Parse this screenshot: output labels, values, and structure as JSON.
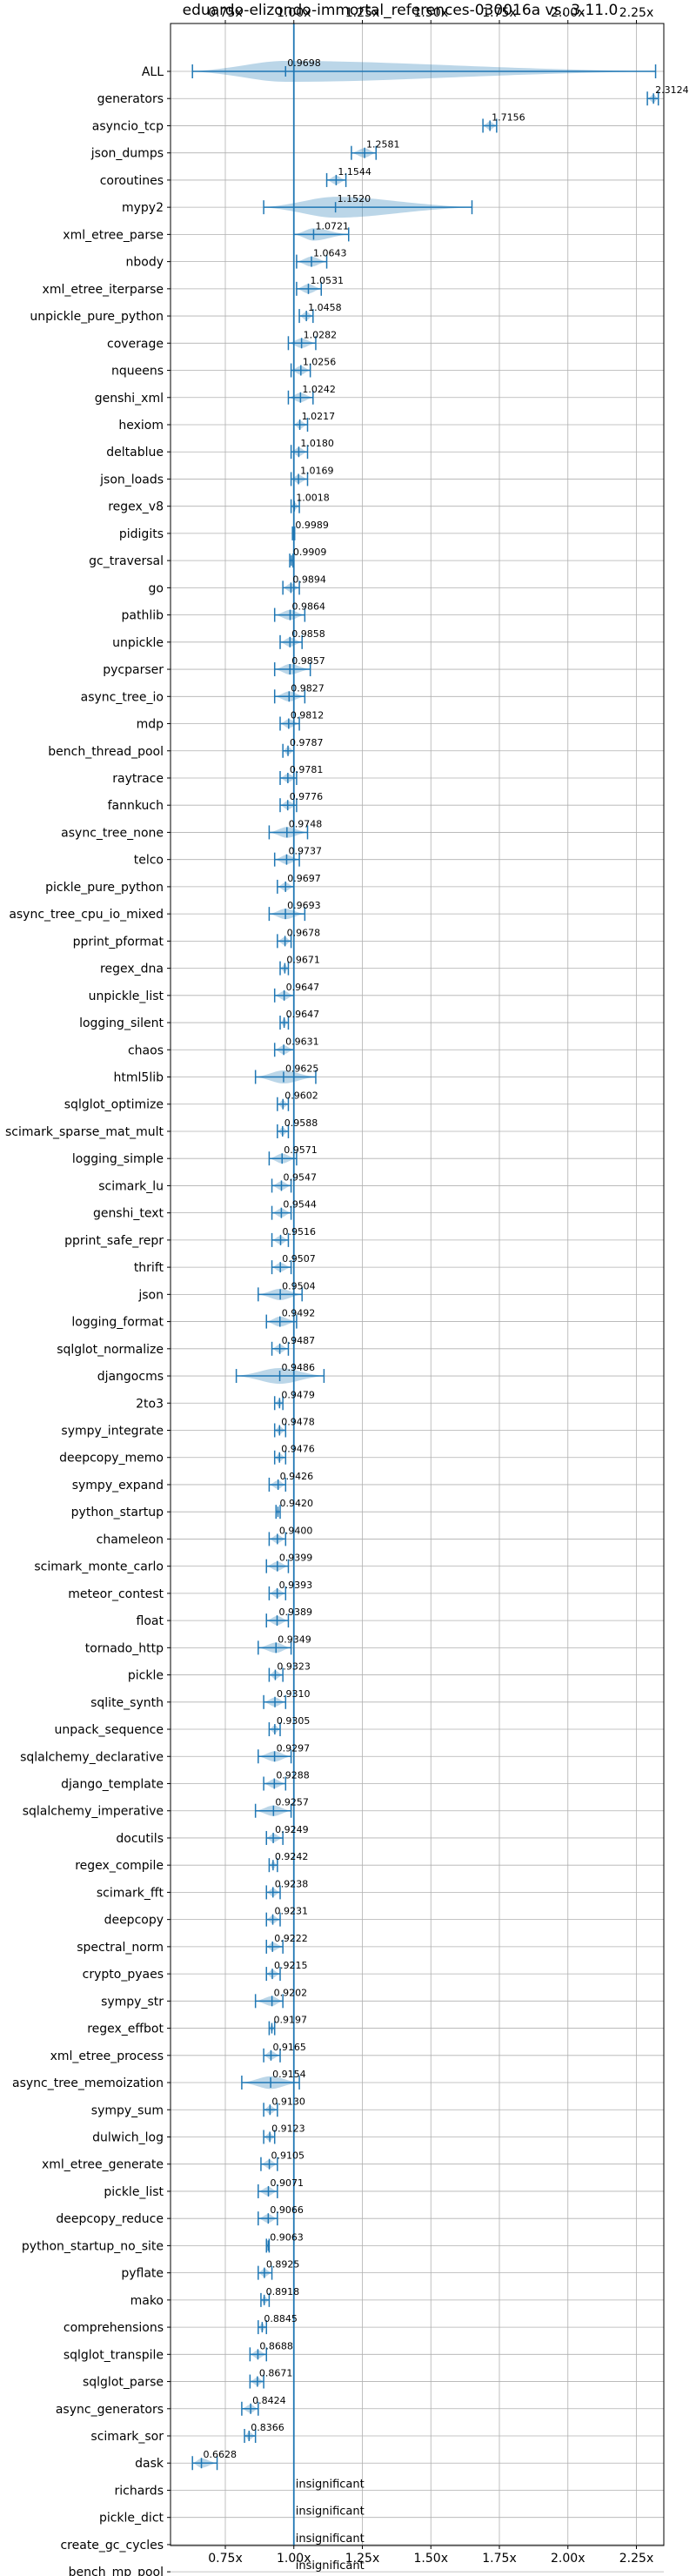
{
  "chart_data": {
    "type": "violin",
    "title": "eduardo-elizondo-immortal_references-030016a vs. 3.11.0",
    "xlim": [
      0.55,
      2.35
    ],
    "x_ticks": [
      0.75,
      1.0,
      1.25,
      1.5,
      1.75,
      2.0,
      2.25
    ],
    "x_tick_labels": [
      "0.75x",
      "1.00x",
      "1.25x",
      "1.50x",
      "1.75x",
      "2.00x",
      "2.25x"
    ],
    "reference_x": 1.0,
    "grid": true,
    "color": "#1f77b4",
    "insignificant_label": "insignificant",
    "benchmarks": [
      {
        "name": "ALL",
        "value": 0.9698,
        "label": "0.9698",
        "min": 0.63,
        "max": 2.32
      },
      {
        "name": "generators",
        "value": 2.3124,
        "label": "2.3124",
        "min": 2.29,
        "max": 2.33
      },
      {
        "name": "asyncio_tcp",
        "value": 1.7156,
        "label": "1.7156",
        "min": 1.69,
        "max": 1.74
      },
      {
        "name": "json_dumps",
        "value": 1.2581,
        "label": "1.2581",
        "min": 1.21,
        "max": 1.3
      },
      {
        "name": "coroutines",
        "value": 1.1544,
        "label": "1.1544",
        "min": 1.12,
        "max": 1.19
      },
      {
        "name": "mypy2",
        "value": 1.152,
        "label": "1.1520",
        "min": 0.89,
        "max": 1.65
      },
      {
        "name": "xml_etree_parse",
        "value": 1.0721,
        "label": "1.0721",
        "min": 1.0,
        "max": 1.2
      },
      {
        "name": "nbody",
        "value": 1.0643,
        "label": "1.0643",
        "min": 1.01,
        "max": 1.12
      },
      {
        "name": "xml_etree_iterparse",
        "value": 1.0531,
        "label": "1.0531",
        "min": 1.01,
        "max": 1.1
      },
      {
        "name": "unpickle_pure_python",
        "value": 1.0458,
        "label": "1.0458",
        "min": 1.02,
        "max": 1.07
      },
      {
        "name": "coverage",
        "value": 1.0282,
        "label": "1.0282",
        "min": 0.98,
        "max": 1.08
      },
      {
        "name": "nqueens",
        "value": 1.0256,
        "label": "1.0256",
        "min": 0.99,
        "max": 1.06
      },
      {
        "name": "genshi_xml",
        "value": 1.0242,
        "label": "1.0242",
        "min": 0.98,
        "max": 1.07
      },
      {
        "name": "hexiom",
        "value": 1.0217,
        "label": "1.0217",
        "min": 1.0,
        "max": 1.05
      },
      {
        "name": "deltablue",
        "value": 1.018,
        "label": "1.0180",
        "min": 0.99,
        "max": 1.05
      },
      {
        "name": "json_loads",
        "value": 1.0169,
        "label": "1.0169",
        "min": 0.99,
        "max": 1.05
      },
      {
        "name": "regex_v8",
        "value": 1.0018,
        "label": "1.0018",
        "min": 0.99,
        "max": 1.02
      },
      {
        "name": "pidigits",
        "value": 0.9989,
        "label": "0.9989",
        "min": 0.995,
        "max": 1.003
      },
      {
        "name": "gc_traversal",
        "value": 0.9909,
        "label": "0.9909",
        "min": 0.985,
        "max": 0.997
      },
      {
        "name": "go",
        "value": 0.9894,
        "label": "0.9894",
        "min": 0.96,
        "max": 1.02
      },
      {
        "name": "pathlib",
        "value": 0.9864,
        "label": "0.9864",
        "min": 0.93,
        "max": 1.04
      },
      {
        "name": "unpickle",
        "value": 0.9858,
        "label": "0.9858",
        "min": 0.95,
        "max": 1.03
      },
      {
        "name": "pycparser",
        "value": 0.9857,
        "label": "0.9857",
        "min": 0.93,
        "max": 1.06
      },
      {
        "name": "async_tree_io",
        "value": 0.9827,
        "label": "0.9827",
        "min": 0.93,
        "max": 1.04
      },
      {
        "name": "mdp",
        "value": 0.9812,
        "label": "0.9812",
        "min": 0.95,
        "max": 1.02
      },
      {
        "name": "bench_thread_pool",
        "value": 0.9787,
        "label": "0.9787",
        "min": 0.96,
        "max": 1.0
      },
      {
        "name": "raytrace",
        "value": 0.9781,
        "label": "0.9781",
        "min": 0.95,
        "max": 1.01
      },
      {
        "name": "fannkuch",
        "value": 0.9776,
        "label": "0.9776",
        "min": 0.95,
        "max": 1.01
      },
      {
        "name": "async_tree_none",
        "value": 0.9748,
        "label": "0.9748",
        "min": 0.91,
        "max": 1.05
      },
      {
        "name": "telco",
        "value": 0.9737,
        "label": "0.9737",
        "min": 0.93,
        "max": 1.02
      },
      {
        "name": "pickle_pure_python",
        "value": 0.9697,
        "label": "0.9697",
        "min": 0.94,
        "max": 1.0
      },
      {
        "name": "async_tree_cpu_io_mixed",
        "value": 0.9693,
        "label": "0.9693",
        "min": 0.91,
        "max": 1.04
      },
      {
        "name": "pprint_pformat",
        "value": 0.9678,
        "label": "0.9678",
        "min": 0.94,
        "max": 0.99
      },
      {
        "name": "regex_dna",
        "value": 0.9671,
        "label": "0.9671",
        "min": 0.95,
        "max": 0.98
      },
      {
        "name": "unpickle_list",
        "value": 0.9647,
        "label": "0.9647",
        "min": 0.93,
        "max": 1.0
      },
      {
        "name": "logging_silent",
        "value": 0.9647,
        "label": "0.9647",
        "min": 0.95,
        "max": 0.98
      },
      {
        "name": "chaos",
        "value": 0.9631,
        "label": "0.9631",
        "min": 0.93,
        "max": 1.0
      },
      {
        "name": "html5lib",
        "value": 0.9625,
        "label": "0.9625",
        "min": 0.86,
        "max": 1.08
      },
      {
        "name": "sqlglot_optimize",
        "value": 0.9602,
        "label": "0.9602",
        "min": 0.94,
        "max": 0.98
      },
      {
        "name": "scimark_sparse_mat_mult",
        "value": 0.9588,
        "label": "0.9588",
        "min": 0.94,
        "max": 0.98
      },
      {
        "name": "logging_simple",
        "value": 0.9571,
        "label": "0.9571",
        "min": 0.91,
        "max": 1.01
      },
      {
        "name": "scimark_lu",
        "value": 0.9547,
        "label": "0.9547",
        "min": 0.92,
        "max": 0.99
      },
      {
        "name": "genshi_text",
        "value": 0.9544,
        "label": "0.9544",
        "min": 0.92,
        "max": 0.99
      },
      {
        "name": "pprint_safe_repr",
        "value": 0.9516,
        "label": "0.9516",
        "min": 0.92,
        "max": 0.98
      },
      {
        "name": "thrift",
        "value": 0.9507,
        "label": "0.9507",
        "min": 0.92,
        "max": 0.99
      },
      {
        "name": "json",
        "value": 0.9504,
        "label": "0.9504",
        "min": 0.87,
        "max": 1.03
      },
      {
        "name": "logging_format",
        "value": 0.9492,
        "label": "0.9492",
        "min": 0.9,
        "max": 1.01
      },
      {
        "name": "sqlglot_normalize",
        "value": 0.9487,
        "label": "0.9487",
        "min": 0.92,
        "max": 0.98
      },
      {
        "name": "djangocms",
        "value": 0.9486,
        "label": "0.9486",
        "min": 0.79,
        "max": 1.11
      },
      {
        "name": "2to3",
        "value": 0.9479,
        "label": "0.9479",
        "min": 0.93,
        "max": 0.96
      },
      {
        "name": "sympy_integrate",
        "value": 0.9478,
        "label": "0.9478",
        "min": 0.93,
        "max": 0.97
      },
      {
        "name": "deepcopy_memo",
        "value": 0.9476,
        "label": "0.9476",
        "min": 0.93,
        "max": 0.97
      },
      {
        "name": "sympy_expand",
        "value": 0.9426,
        "label": "0.9426",
        "min": 0.91,
        "max": 0.97
      },
      {
        "name": "python_startup",
        "value": 0.942,
        "label": "0.9420",
        "min": 0.935,
        "max": 0.95
      },
      {
        "name": "chameleon",
        "value": 0.94,
        "label": "0.9400",
        "min": 0.91,
        "max": 0.97
      },
      {
        "name": "scimark_monte_carlo",
        "value": 0.9399,
        "label": "0.9399",
        "min": 0.9,
        "max": 0.98
      },
      {
        "name": "meteor_contest",
        "value": 0.9393,
        "label": "0.9393",
        "min": 0.91,
        "max": 0.97
      },
      {
        "name": "float",
        "value": 0.9389,
        "label": "0.9389",
        "min": 0.9,
        "max": 0.98
      },
      {
        "name": "tornado_http",
        "value": 0.9349,
        "label": "0.9349",
        "min": 0.87,
        "max": 0.99
      },
      {
        "name": "pickle",
        "value": 0.9323,
        "label": "0.9323",
        "min": 0.91,
        "max": 0.96
      },
      {
        "name": "sqlite_synth",
        "value": 0.931,
        "label": "0.9310",
        "min": 0.89,
        "max": 0.97
      },
      {
        "name": "unpack_sequence",
        "value": 0.9305,
        "label": "0.9305",
        "min": 0.91,
        "max": 0.95
      },
      {
        "name": "sqlalchemy_declarative",
        "value": 0.9297,
        "label": "0.9297",
        "min": 0.87,
        "max": 0.99
      },
      {
        "name": "django_template",
        "value": 0.9288,
        "label": "0.9288",
        "min": 0.89,
        "max": 0.97
      },
      {
        "name": "sqlalchemy_imperative",
        "value": 0.9257,
        "label": "0.9257",
        "min": 0.86,
        "max": 0.99
      },
      {
        "name": "docutils",
        "value": 0.9249,
        "label": "0.9249",
        "min": 0.9,
        "max": 0.96
      },
      {
        "name": "regex_compile",
        "value": 0.9242,
        "label": "0.9242",
        "min": 0.91,
        "max": 0.94
      },
      {
        "name": "scimark_fft",
        "value": 0.9238,
        "label": "0.9238",
        "min": 0.9,
        "max": 0.95
      },
      {
        "name": "deepcopy",
        "value": 0.9231,
        "label": "0.9231",
        "min": 0.9,
        "max": 0.95
      },
      {
        "name": "spectral_norm",
        "value": 0.9222,
        "label": "0.9222",
        "min": 0.9,
        "max": 0.96
      },
      {
        "name": "crypto_pyaes",
        "value": 0.9215,
        "label": "0.9215",
        "min": 0.9,
        "max": 0.95
      },
      {
        "name": "sympy_str",
        "value": 0.9202,
        "label": "0.9202",
        "min": 0.86,
        "max": 0.96
      },
      {
        "name": "regex_effbot",
        "value": 0.9197,
        "label": "0.9197",
        "min": 0.91,
        "max": 0.93
      },
      {
        "name": "xml_etree_process",
        "value": 0.9165,
        "label": "0.9165",
        "min": 0.89,
        "max": 0.95
      },
      {
        "name": "async_tree_memoization",
        "value": 0.9154,
        "label": "0.9154",
        "min": 0.81,
        "max": 1.02
      },
      {
        "name": "sympy_sum",
        "value": 0.913,
        "label": "0.9130",
        "min": 0.89,
        "max": 0.94
      },
      {
        "name": "dulwich_log",
        "value": 0.9123,
        "label": "0.9123",
        "min": 0.89,
        "max": 0.93
      },
      {
        "name": "xml_etree_generate",
        "value": 0.9105,
        "label": "0.9105",
        "min": 0.88,
        "max": 0.94
      },
      {
        "name": "pickle_list",
        "value": 0.9071,
        "label": "0.9071",
        "min": 0.87,
        "max": 0.94
      },
      {
        "name": "deepcopy_reduce",
        "value": 0.9066,
        "label": "0.9066",
        "min": 0.87,
        "max": 0.94
      },
      {
        "name": "python_startup_no_site",
        "value": 0.9063,
        "label": "0.9063",
        "min": 0.9,
        "max": 0.91
      },
      {
        "name": "pyflate",
        "value": 0.8925,
        "label": "0.8925",
        "min": 0.87,
        "max": 0.92
      },
      {
        "name": "mako",
        "value": 0.8918,
        "label": "0.8918",
        "min": 0.88,
        "max": 0.91
      },
      {
        "name": "comprehensions",
        "value": 0.8845,
        "label": "0.8845",
        "min": 0.87,
        "max": 0.9
      },
      {
        "name": "sqlglot_transpile",
        "value": 0.8688,
        "label": "0.8688",
        "min": 0.84,
        "max": 0.9
      },
      {
        "name": "sqlglot_parse",
        "value": 0.8671,
        "label": "0.8671",
        "min": 0.84,
        "max": 0.89
      },
      {
        "name": "async_generators",
        "value": 0.8424,
        "label": "0.8424",
        "min": 0.81,
        "max": 0.87
      },
      {
        "name": "scimark_sor",
        "value": 0.8366,
        "label": "0.8366",
        "min": 0.82,
        "max": 0.86
      },
      {
        "name": "dask",
        "value": 0.6628,
        "label": "0.6628",
        "min": 0.63,
        "max": 0.72
      },
      {
        "name": "richards",
        "insignificant": true
      },
      {
        "name": "pickle_dict",
        "insignificant": true
      },
      {
        "name": "create_gc_cycles",
        "insignificant": true
      },
      {
        "name": "bench_mp_pool",
        "insignificant": true
      }
    ]
  }
}
